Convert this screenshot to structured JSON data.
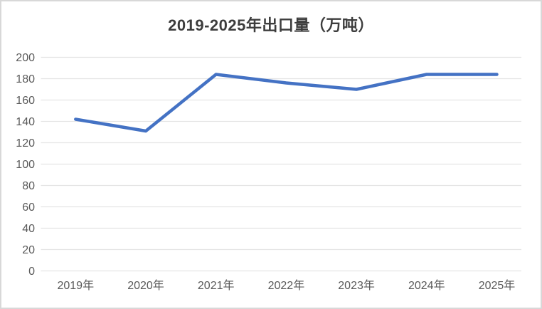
{
  "chart_data": {
    "type": "line",
    "title": "2019-2025年出口量（万吨）",
    "categories": [
      "2019年",
      "2020年",
      "2021年",
      "2022年",
      "2023年",
      "2024年",
      "2025年"
    ],
    "values": [
      142,
      131,
      184,
      176,
      170,
      184,
      184
    ],
    "xlabel": "",
    "ylabel": "",
    "ylim": [
      0,
      200
    ],
    "ytick_step": 20,
    "grid": true,
    "legend": false,
    "colors": {
      "line": "#4472c4",
      "grid": "#e4e4e4",
      "tick_label": "#595959",
      "title": "#3d3d3d",
      "background": "#ffffff",
      "frame_border": "#d8d8d8"
    }
  }
}
